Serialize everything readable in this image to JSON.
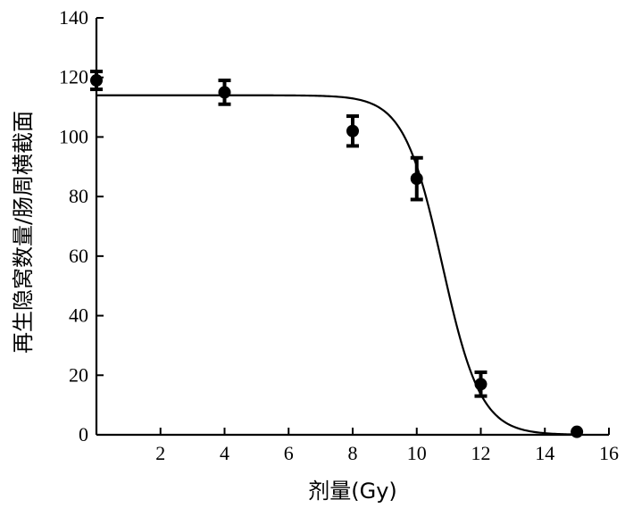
{
  "chart_data": {
    "type": "scatter",
    "title": "",
    "xlabel": "剂量(Gy)",
    "ylabel": "再生隐窝数量/肠周横截面",
    "xlim": [
      0,
      16
    ],
    "ylim": [
      0,
      140
    ],
    "x_ticks": [
      2,
      4,
      6,
      8,
      10,
      12,
      14,
      16
    ],
    "y_ticks": [
      0,
      20,
      40,
      60,
      80,
      100,
      120,
      140
    ],
    "grid": false,
    "legend": "none",
    "series": [
      {
        "points": [
          {
            "x": 0,
            "y": 119,
            "err": 3
          },
          {
            "x": 4,
            "y": 115,
            "err": 4
          },
          {
            "x": 8,
            "y": 102,
            "err": 5
          },
          {
            "x": 10,
            "y": 86,
            "err": 7
          },
          {
            "x": 12,
            "y": 17,
            "err": 4
          },
          {
            "x": 15,
            "y": 1,
            "err": 0
          }
        ]
      }
    ],
    "fit_curve": {
      "type": "sigmoid",
      "top": 114,
      "bottom": 0,
      "x50": 10.8,
      "slope": 0.6
    }
  }
}
